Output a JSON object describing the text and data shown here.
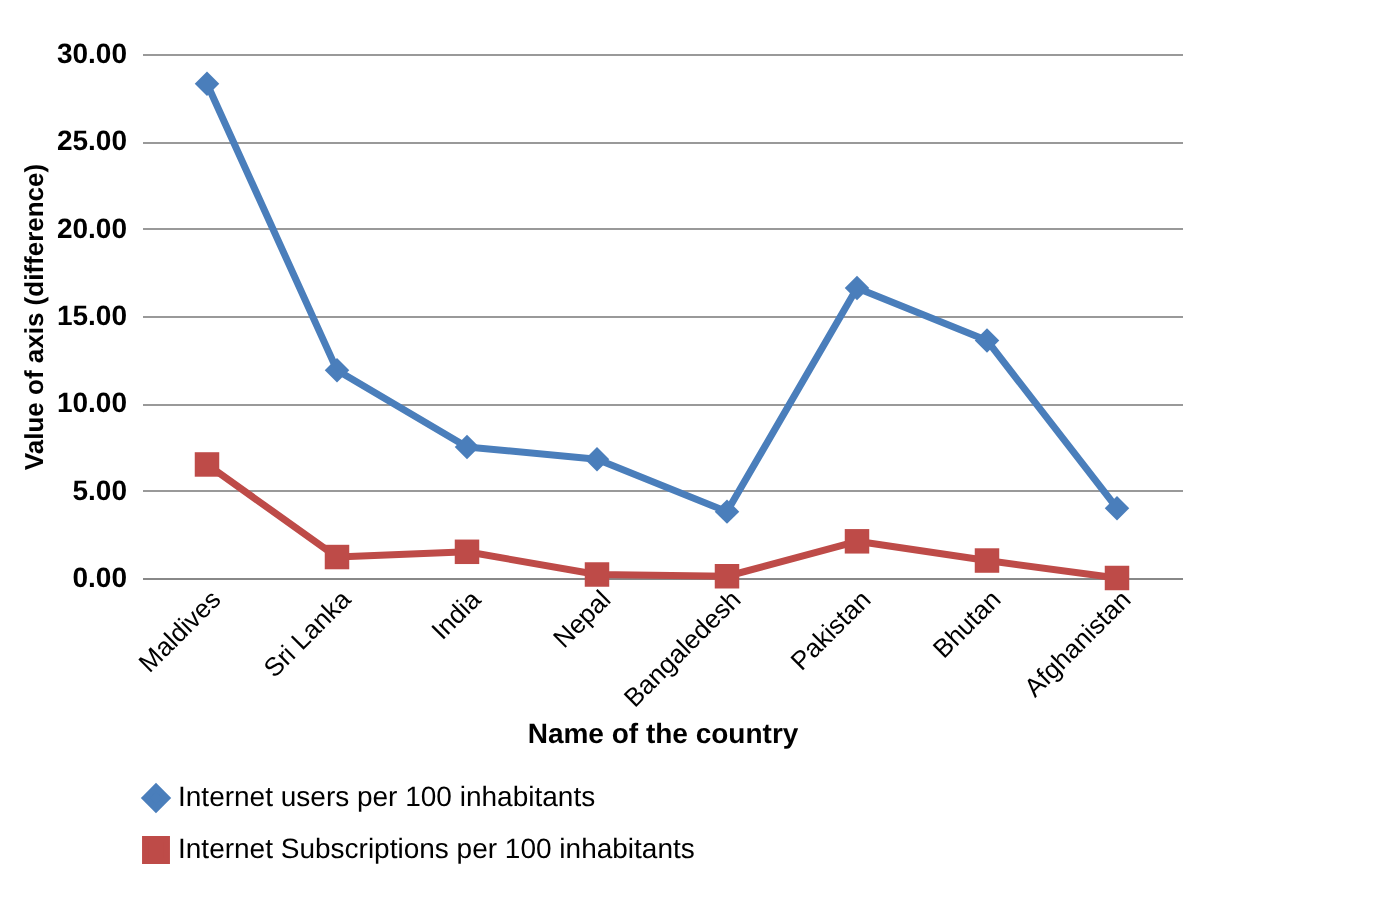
{
  "chart_data": {
    "type": "line",
    "xlabel": "Name of the country",
    "ylabel": "Value of axis (difference)",
    "categories": [
      "Maldives",
      "Sri Lanka",
      "India",
      "Nepal",
      "Bangaledesh",
      "Pakistan",
      "Bhutan",
      "Afghanistan"
    ],
    "series": [
      {
        "name": "Internet users per 100 inhabitants",
        "color": "#4a7ebb",
        "marker": "diamond",
        "values": [
          28.3,
          11.9,
          7.5,
          6.8,
          3.8,
          16.6,
          13.6,
          4.0
        ]
      },
      {
        "name": "Internet Subscriptions per 100 inhabitants",
        "color": "#be4b48",
        "marker": "square",
        "values": [
          6.5,
          1.2,
          1.5,
          0.2,
          0.1,
          2.1,
          1.0,
          0.0
        ]
      }
    ],
    "ylim": [
      0,
      30
    ],
    "yticks": [
      {
        "value": 0,
        "label": "0.00"
      },
      {
        "value": 5,
        "label": "5.00"
      },
      {
        "value": 10,
        "label": "10.00"
      },
      {
        "value": 15,
        "label": "15.00"
      },
      {
        "value": 20,
        "label": "20.00"
      },
      {
        "value": 25,
        "label": "25.00"
      },
      {
        "value": 30,
        "label": "30.00"
      }
    ],
    "grid": "y",
    "legend": "bottom",
    "line_style": "solid"
  }
}
